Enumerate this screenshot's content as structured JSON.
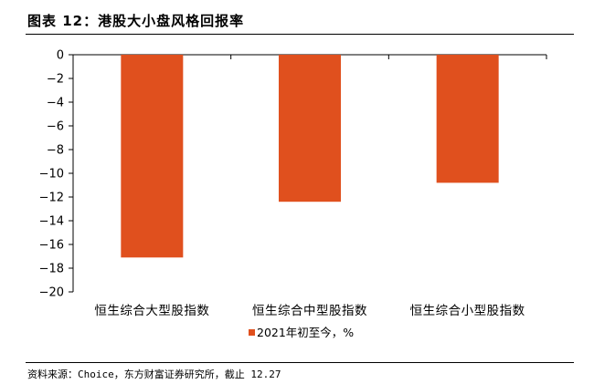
{
  "figure": {
    "title": "图表 12：港股大小盘风格回报率",
    "source": "资料来源：Choice，东方财富证券研究所，截止 12.27"
  },
  "chart_data": {
    "type": "bar",
    "categories": [
      "恒生综合大型股指数",
      "恒生综合中型股指数",
      "恒生综合小型股指数"
    ],
    "series": [
      {
        "name": "2021年初至今，%",
        "values": [
          -17.1,
          -12.4,
          -10.8
        ],
        "color": "#e0501e"
      }
    ],
    "ylim": [
      -20,
      0
    ],
    "yticks": [
      0,
      -2,
      -4,
      -6,
      -8,
      -10,
      -12,
      -14,
      -16,
      -18,
      -20
    ],
    "grid": false,
    "legend": "bottom-center"
  }
}
